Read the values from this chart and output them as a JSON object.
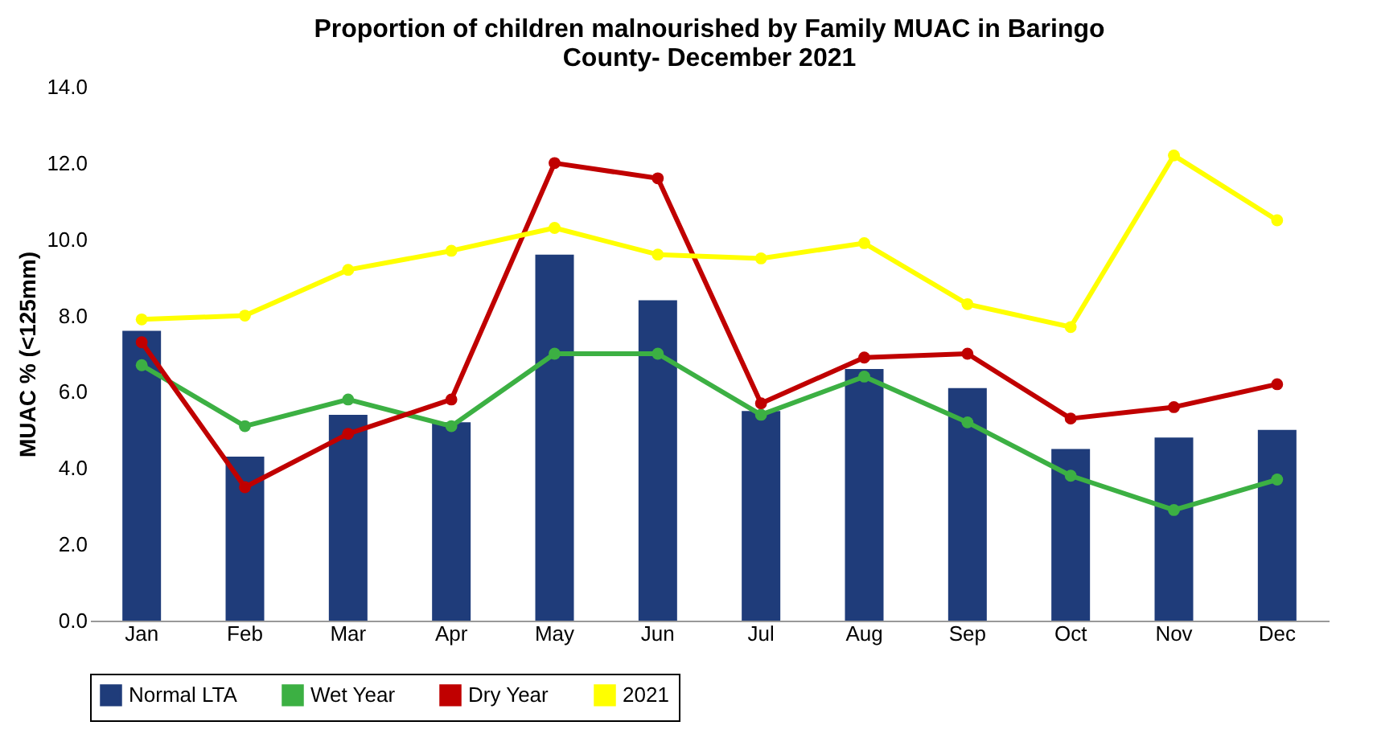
{
  "chart_data": {
    "type": "bar",
    "title": "Proportion of children malnourished by Family MUAC in Baringo County- December  2021",
    "ylabel": "MUAC % (<125mm)",
    "categories": [
      "Jan",
      "Feb",
      "Mar",
      "Apr",
      "May",
      "Jun",
      "Jul",
      "Aug",
      "Sep",
      "Oct",
      "Nov",
      "Dec"
    ],
    "series": [
      {
        "name": "Normal LTA",
        "color": "#1f3c7a",
        "values": [
          7.6,
          4.3,
          5.4,
          5.2,
          9.6,
          8.4,
          5.5,
          6.6,
          6.1,
          4.5,
          4.8,
          5.0
        ]
      },
      {
        "name": "Wet Year",
        "type": "line",
        "color": "#3cb043",
        "values": [
          6.7,
          5.1,
          5.8,
          5.1,
          7.0,
          7.0,
          5.4,
          6.4,
          5.2,
          3.8,
          2.9,
          3.7
        ]
      },
      {
        "name": "Dry Year",
        "type": "line",
        "color": "#c00000",
        "values": [
          7.3,
          3.5,
          4.9,
          5.8,
          12.0,
          11.6,
          5.7,
          6.9,
          7.0,
          5.3,
          5.6,
          6.2
        ]
      },
      {
        "name": "2021",
        "type": "line",
        "color": "#ffff00",
        "values": [
          7.9,
          8.0,
          9.2,
          9.7,
          10.3,
          9.6,
          9.5,
          9.9,
          8.3,
          7.7,
          12.2,
          10.5
        ]
      }
    ],
    "ylim": [
      0,
      14
    ],
    "yticks": [
      {
        "value": 0,
        "label": "0.0"
      },
      {
        "value": 2,
        "label": "2.0"
      },
      {
        "value": 4,
        "label": "4.0"
      },
      {
        "value": 6,
        "label": "6.0"
      },
      {
        "value": 8,
        "label": "8.0"
      },
      {
        "value": 10,
        "label": "10.0"
      },
      {
        "value": 12,
        "label": "12.0"
      },
      {
        "value": 14,
        "label": "14.0"
      }
    ],
    "legend": "bottom",
    "marker": "circle",
    "line_style": "solid",
    "grid": false
  }
}
